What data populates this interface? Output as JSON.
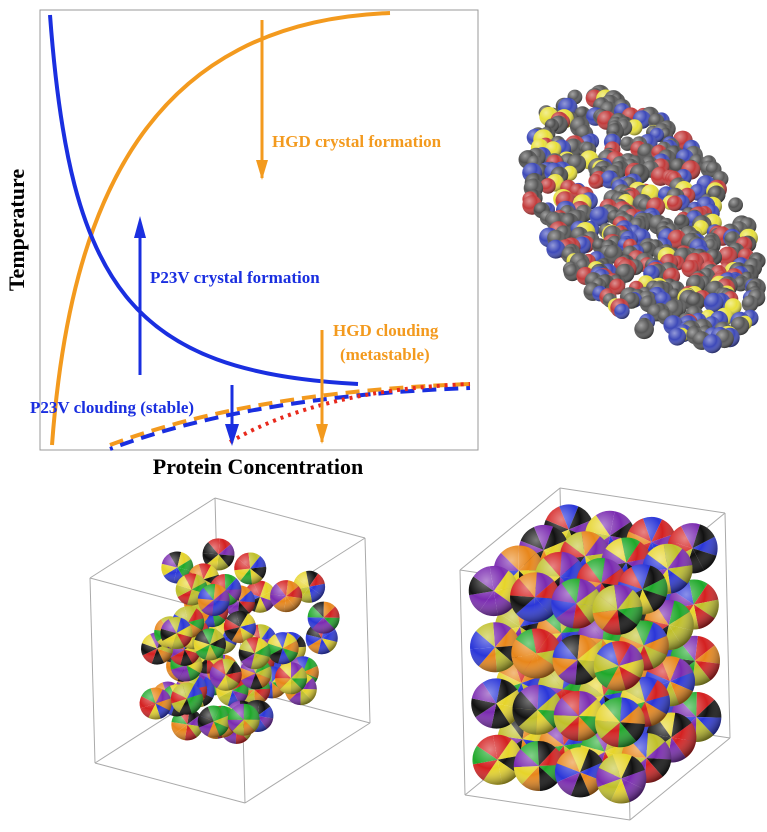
{
  "phase_diagram": {
    "y_axis_label": "Temperature",
    "x_axis_label": "Protein Concentration",
    "annotations": {
      "hgd_crystal": "HGD crystal formation",
      "p23v_crystal": "P23V crystal formation",
      "hgd_clouding": [
        "HGD clouding",
        "(metastable)"
      ],
      "p23v_clouding": "P23V clouding (stable)"
    }
  }
}
